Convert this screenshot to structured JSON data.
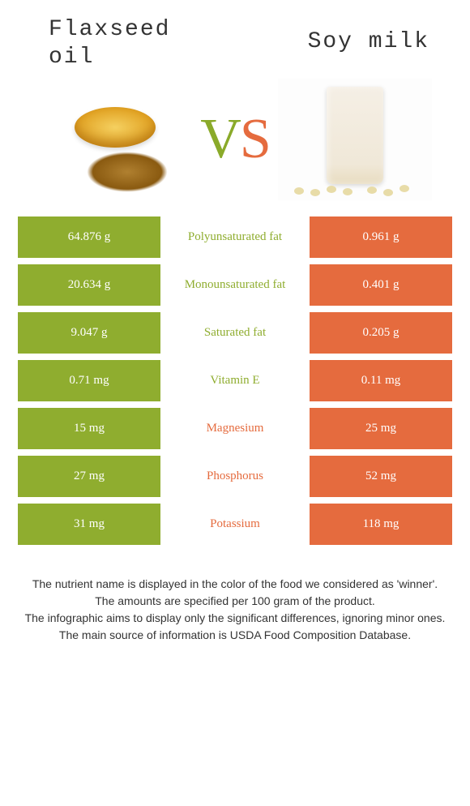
{
  "header": {
    "left_title": "Flaxseed\noil",
    "right_title": "Soy milk",
    "vs_v": "V",
    "vs_s": "S"
  },
  "colors": {
    "left": "#8fad2f",
    "right": "#e56b3e",
    "row_gap_bg": "#ffffff",
    "text_on_block": "#ffffff"
  },
  "table": {
    "rows": [
      {
        "left": "64.876 g",
        "label": "Polyunsaturated fat",
        "right": "0.961 g",
        "winner": "left"
      },
      {
        "left": "20.634 g",
        "label": "Monounsaturated fat",
        "right": "0.401 g",
        "winner": "left"
      },
      {
        "left": "9.047 g",
        "label": "Saturated fat",
        "right": "0.205 g",
        "winner": "left"
      },
      {
        "left": "0.71 mg",
        "label": "Vitamin E",
        "right": "0.11 mg",
        "winner": "left"
      },
      {
        "left": "15 mg",
        "label": "Magnesium",
        "right": "25 mg",
        "winner": "right"
      },
      {
        "left": "27 mg",
        "label": "Phosphorus",
        "right": "52 mg",
        "winner": "right"
      },
      {
        "left": "31 mg",
        "label": "Potassium",
        "right": "118 mg",
        "winner": "right"
      }
    ]
  },
  "footer": {
    "line1": "The nutrient name is displayed in the color of the food we considered as 'winner'.",
    "line2": "The amounts are specified per 100 gram of the product.",
    "line3": "The infographic aims to display only the significant differences, ignoring minor ones.",
    "line4": "The main source of information is USDA Food Composition Database."
  }
}
